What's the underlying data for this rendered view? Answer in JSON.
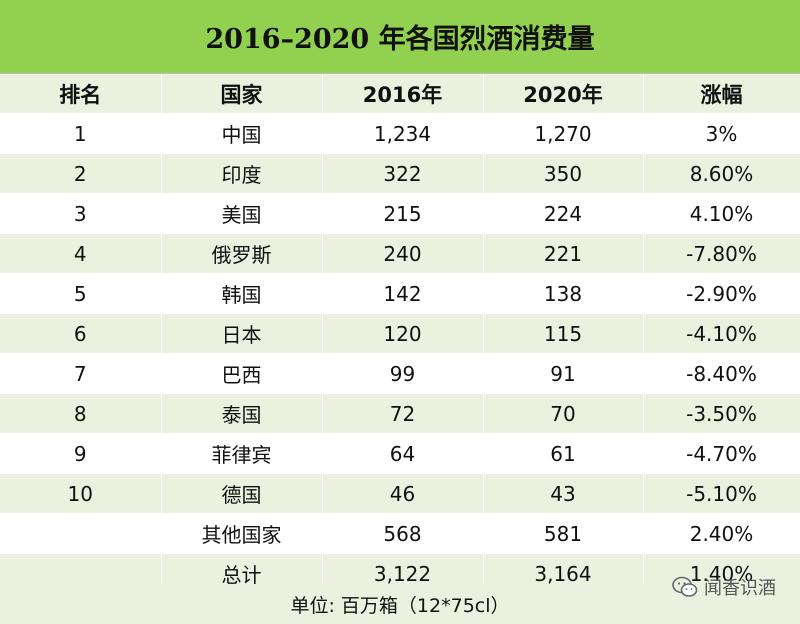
{
  "title": "2016–2020 年各国烈酒消费量",
  "columns": [
    "排名",
    "国家",
    "2016年",
    "2020年",
    "涨幅"
  ],
  "rows": [
    {
      "rank": "1",
      "country": "中国",
      "y2016": "1,234",
      "y2020": "1,270",
      "change": "3%"
    },
    {
      "rank": "2",
      "country": "印度",
      "y2016": "322",
      "y2020": "350",
      "change": "8.60%"
    },
    {
      "rank": "3",
      "country": "美国",
      "y2016": "215",
      "y2020": "224",
      "change": "4.10%"
    },
    {
      "rank": "4",
      "country": "俄罗斯",
      "y2016": "240",
      "y2020": "221",
      "change": "-7.80%"
    },
    {
      "rank": "5",
      "country": "韩国",
      "y2016": "142",
      "y2020": "138",
      "change": "-2.90%"
    },
    {
      "rank": "6",
      "country": "日本",
      "y2016": "120",
      "y2020": "115",
      "change": "-4.10%"
    },
    {
      "rank": "7",
      "country": "巴西",
      "y2016": "99",
      "y2020": "91",
      "change": "-8.40%"
    },
    {
      "rank": "8",
      "country": "泰国",
      "y2016": "72",
      "y2020": "70",
      "change": "-3.50%"
    },
    {
      "rank": "9",
      "country": "菲律宾",
      "y2016": "64",
      "y2020": "61",
      "change": "-4.70%"
    },
    {
      "rank": "10",
      "country": "德国",
      "y2016": "46",
      "y2020": "43",
      "change": "-5.10%"
    },
    {
      "rank": "",
      "country": "其他国家",
      "y2016": "568",
      "y2020": "581",
      "change": "2.40%"
    },
    {
      "rank": "",
      "country": "总计",
      "y2016": "3,122",
      "y2020": "3,164",
      "change": "1.40%"
    }
  ],
  "footer_note": "单位: 百万箱（12*75cl）",
  "watermark": {
    "text": "闻香识酒",
    "icon": "wechat-icon"
  },
  "colors": {
    "title_bg": "#92d050",
    "band": "#ebf1de",
    "white": "#ffffff"
  }
}
